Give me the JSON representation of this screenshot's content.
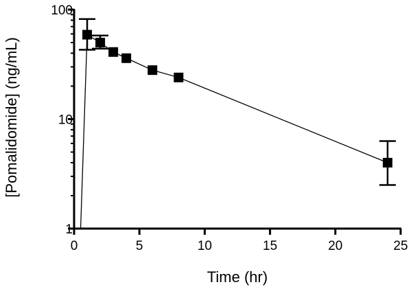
{
  "chart_data": {
    "type": "scatter",
    "xlabel": "Time (hr)",
    "ylabel": "[Pomalidomide] (ng/mL)",
    "xlim": [
      0,
      25
    ],
    "ylim": [
      1,
      100
    ],
    "yscale": "log",
    "grid": false,
    "xticks": [
      0,
      5,
      10,
      15,
      20,
      25
    ],
    "yticks": [
      1,
      10,
      100
    ],
    "xtick_labels": [
      "0",
      "5",
      "10",
      "15",
      "20",
      "25"
    ],
    "ytick_labels": [
      "1",
      "10",
      "100"
    ],
    "line_start": {
      "x": 0.5,
      "y": 1
    },
    "series": [
      {
        "marker": "square",
        "color": "#000000",
        "points": [
          {
            "x": 1,
            "y": 59,
            "yerr_low": 43,
            "yerr_high": 82
          },
          {
            "x": 2,
            "y": 50,
            "yerr_low": 44,
            "yerr_high": 58
          },
          {
            "x": 3,
            "y": 41
          },
          {
            "x": 4,
            "y": 36
          },
          {
            "x": 6,
            "y": 28
          },
          {
            "x": 8,
            "y": 24
          },
          {
            "x": 24,
            "y": 4,
            "yerr_low": 2.5,
            "yerr_high": 6.3
          }
        ]
      }
    ]
  }
}
